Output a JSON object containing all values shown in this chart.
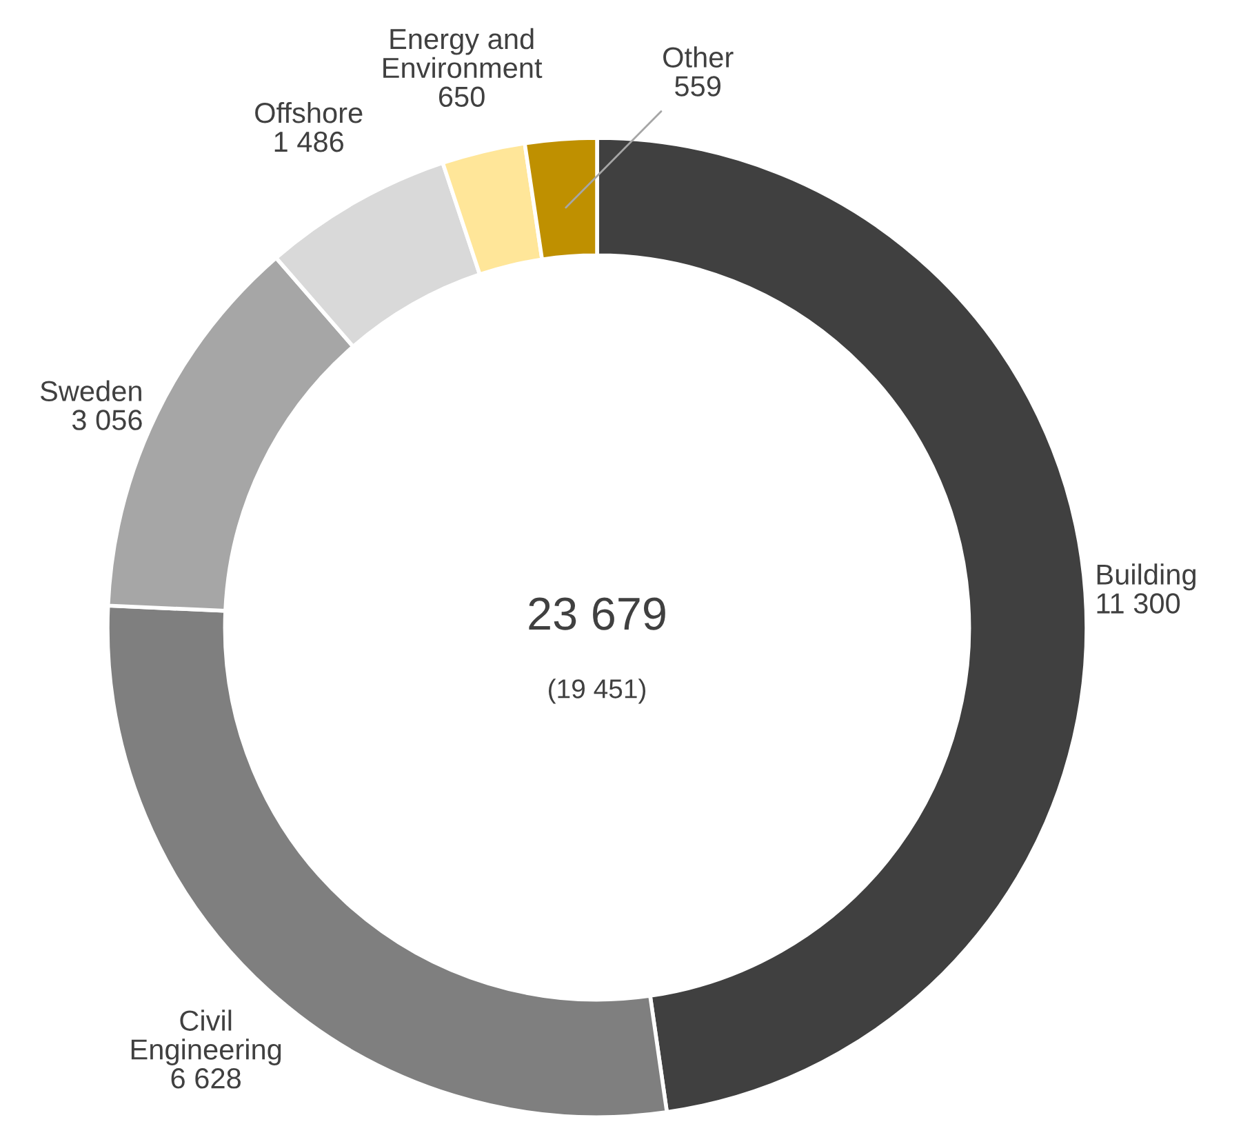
{
  "chart_data": {
    "type": "donut",
    "categories": [
      "Building",
      "Civil\nEngineering",
      "Sweden",
      "Offshore",
      "Energy and\nEnvironment",
      "Other"
    ],
    "values": [
      11300,
      6628,
      3056,
      1486,
      650,
      559
    ],
    "value_labels": [
      "11 300",
      "6 628",
      "3 056",
      "1 486",
      "650",
      "559"
    ],
    "colors": [
      "#404040",
      "#7f7f7f",
      "#a6a6a6",
      "#d9d9d9",
      "#ffe699",
      "#bf9000"
    ],
    "annotations": [
      "23 679",
      "(19 451)"
    ],
    "legend": false
  }
}
